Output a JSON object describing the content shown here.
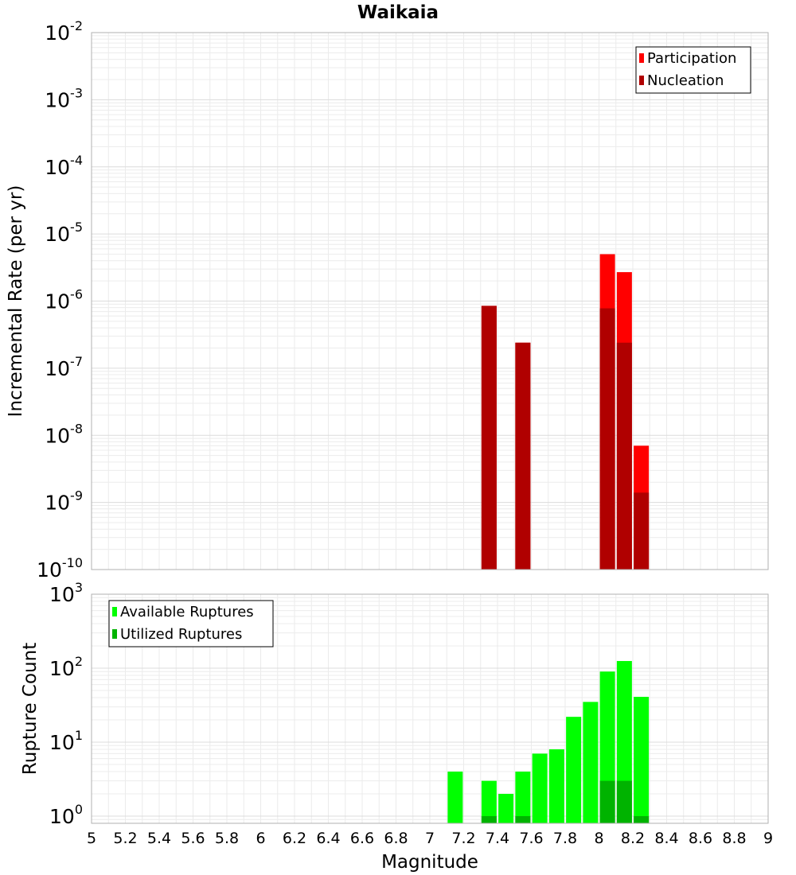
{
  "chart_data": [
    {
      "type": "bar",
      "title": "Waikaia",
      "xlabel": "",
      "ylabel": "Incremental Rate (per yr)",
      "yscale": "log",
      "ylim": [
        1e-10,
        0.01
      ],
      "xlim": [
        5,
        9
      ],
      "ytick_labels": [
        {
          "base": "10",
          "exp": "-10"
        },
        {
          "base": "10",
          "exp": "-9"
        },
        {
          "base": "10",
          "exp": "-8"
        },
        {
          "base": "10",
          "exp": "-7"
        },
        {
          "base": "10",
          "exp": "-6"
        },
        {
          "base": "10",
          "exp": "-5"
        },
        {
          "base": "10",
          "exp": "-4"
        },
        {
          "base": "10",
          "exp": "-3"
        },
        {
          "base": "10",
          "exp": "-2"
        }
      ],
      "legend_position": "top-right",
      "grid": true,
      "series": [
        {
          "name": "Participation",
          "color": "#ff0000",
          "x": [
            7.35,
            7.55,
            8.05,
            8.15,
            8.25
          ],
          "values": [
            8.5e-07,
            2.4e-07,
            5e-06,
            2.7e-06,
            7e-09
          ]
        },
        {
          "name": "Nucleation",
          "color": "#b00000",
          "x": [
            7.35,
            7.55,
            8.05,
            8.15,
            8.25
          ],
          "values": [
            8.5e-07,
            2.4e-07,
            7.8e-07,
            2.4e-07,
            1.4e-09
          ]
        }
      ]
    },
    {
      "type": "bar",
      "title": "",
      "xlabel": "Magnitude",
      "ylabel": "Rupture Count",
      "yscale": "log",
      "ylim": [
        0.8,
        1000
      ],
      "xlim": [
        5,
        9
      ],
      "ytick_labels": [
        {
          "base": "10",
          "exp": "0"
        },
        {
          "base": "10",
          "exp": "1"
        },
        {
          "base": "10",
          "exp": "2"
        },
        {
          "base": "10",
          "exp": "3"
        }
      ],
      "xtick_labels": [
        "5",
        "5.2",
        "5.4",
        "5.6",
        "5.8",
        "6",
        "6.2",
        "6.4",
        "6.6",
        "6.8",
        "7",
        "7.2",
        "7.4",
        "7.6",
        "7.8",
        "8",
        "8.2",
        "8.4",
        "8.6",
        "8.8",
        "9"
      ],
      "legend_position": "top-left",
      "grid": true,
      "series": [
        {
          "name": "Available Ruptures",
          "color": "#00ff00",
          "x": [
            7.15,
            7.35,
            7.45,
            7.55,
            7.65,
            7.75,
            7.85,
            7.95,
            8.05,
            8.15,
            8.25
          ],
          "values": [
            4,
            3,
            2,
            4,
            7,
            8,
            22,
            35,
            90,
            125,
            41
          ]
        },
        {
          "name": "Utilized Ruptures",
          "color": "#00b300",
          "x": [
            7.35,
            7.55,
            8.05,
            8.15,
            8.25
          ],
          "values": [
            1,
            1,
            3,
            3,
            1
          ]
        }
      ]
    }
  ]
}
